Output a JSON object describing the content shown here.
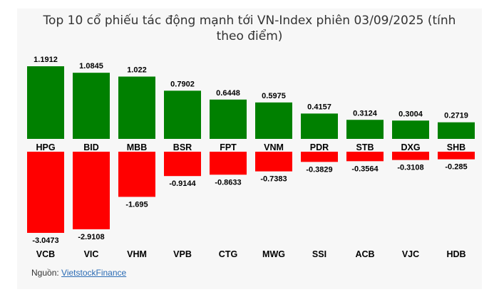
{
  "chart_data": {
    "type": "bar",
    "title": "Top 10 cổ phiếu tác động mạnh tới VN-Index phiên 03/09/2025 (tính theo điểm)",
    "positive": {
      "categories": [
        "HPG",
        "BID",
        "MBB",
        "BSR",
        "FPT",
        "VNM",
        "PDR",
        "STB",
        "DXG",
        "SHB"
      ],
      "values": [
        1.1912,
        1.0845,
        1.022,
        0.7902,
        0.6448,
        0.5975,
        0.4157,
        0.3124,
        0.3004,
        0.2719
      ],
      "value_labels": [
        "1.1912",
        "1.0845",
        "1.022",
        "0.7902",
        "0.6448",
        "0.5975",
        "0.4157",
        "0.3124",
        "0.3004",
        "0.2719"
      ],
      "color": "#008000"
    },
    "negative": {
      "categories": [
        "VCB",
        "VIC",
        "VHM",
        "VPB",
        "CTG",
        "MWG",
        "SSI",
        "ACB",
        "VJC",
        "HDB"
      ],
      "values": [
        -3.0473,
        -2.9108,
        -1.695,
        -0.9144,
        -0.8633,
        -0.7383,
        -0.3829,
        -0.3564,
        -0.3108,
        -0.285
      ],
      "value_labels": [
        "-3.0473",
        "-2.9108",
        "-1.695",
        "-0.9144",
        "-0.8633",
        "-0.7383",
        "-0.3829",
        "-0.3564",
        "-0.3108",
        "-0.285"
      ],
      "color": "#ff0000"
    }
  },
  "footer": {
    "source_label": "Nguồn: ",
    "source_link": "VietstockFinance"
  }
}
